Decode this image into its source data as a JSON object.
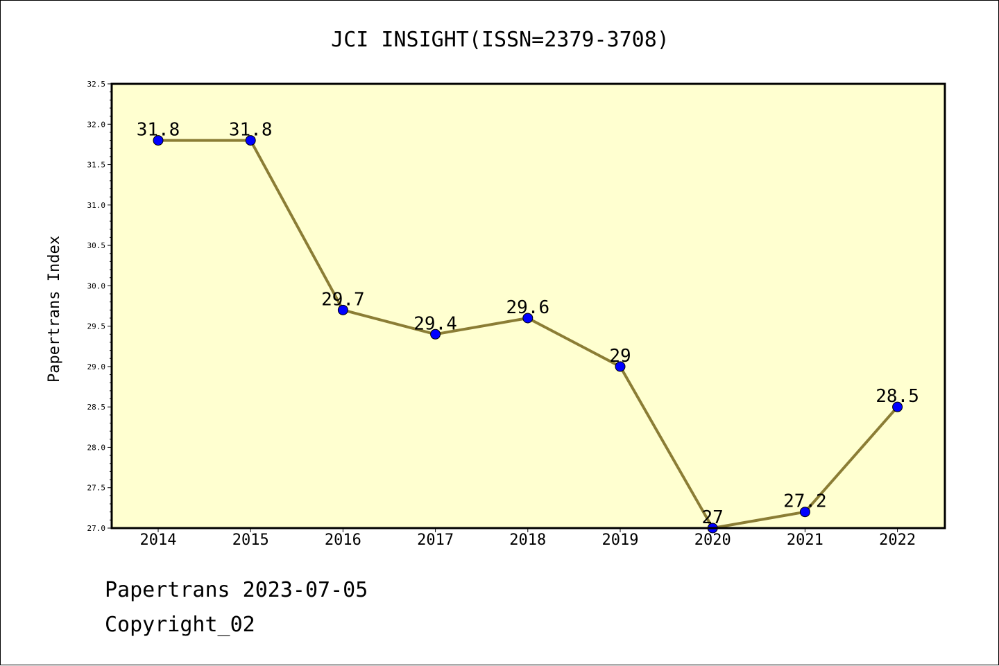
{
  "chart_data": {
    "type": "line",
    "title": "JCI INSIGHT(ISSN=2379-3708)",
    "xlabel": "",
    "ylabel": "Papertrans Index",
    "categories": [
      "2014",
      "2015",
      "2016",
      "2017",
      "2018",
      "2019",
      "2020",
      "2021",
      "2022"
    ],
    "values": [
      31.8,
      31.8,
      29.7,
      29.4,
      29.6,
      29.0,
      27.0,
      27.2,
      28.5
    ],
    "data_labels": [
      "31.8",
      "31.8",
      "29.7",
      "29.4",
      "29.6",
      "29",
      "27",
      "27.2",
      "28.5"
    ],
    "ylim": [
      27.0,
      32.5
    ],
    "yticks": [
      "27.0",
      "27.5",
      "28.0",
      "28.5",
      "29.0",
      "29.5",
      "30.0",
      "30.5",
      "31.0",
      "31.5",
      "32.0",
      "32.5"
    ],
    "grid": false,
    "colors": {
      "plot_background": "#ffffd0",
      "line": "#8b7d35",
      "marker": "#0000ff"
    }
  },
  "footer": {
    "line1": "Papertrans 2023-07-05",
    "line2": "Copyright_02"
  }
}
